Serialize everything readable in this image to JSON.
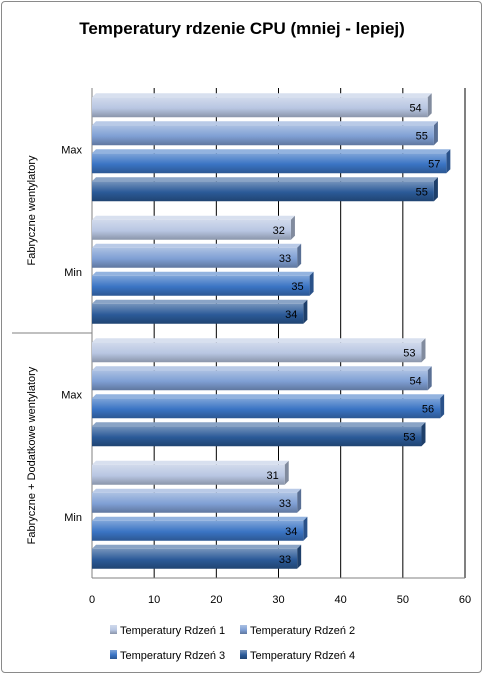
{
  "chart_data": {
    "type": "bar",
    "orientation": "horizontal",
    "title": "Temperatury rdzenie CPU (mniej - lepiej)",
    "xlim": [
      0,
      60
    ],
    "x_ticks": [
      "0",
      "10",
      "20",
      "30",
      "40",
      "50",
      "60"
    ],
    "gridlines": true,
    "legend_position": "bottom",
    "groups": [
      {
        "label": "Fabryczne wentylatory",
        "categories": [
          {
            "label": "Max",
            "values": [
              54,
              55,
              57,
              55
            ]
          },
          {
            "label": "Min",
            "values": [
              32,
              33,
              35,
              34
            ]
          }
        ]
      },
      {
        "label": "Fabryczne + Dodatkowe  wentylatory",
        "categories": [
          {
            "label": "Max",
            "values": [
              53,
              54,
              56,
              53
            ]
          },
          {
            "label": "Min",
            "values": [
              31,
              33,
              34,
              33
            ]
          }
        ]
      }
    ],
    "series": [
      {
        "name": "Temperatury Rdzeń 1",
        "color": "#b8c6e2"
      },
      {
        "name": "Temperatury Rdzeń 2",
        "color": "#7f9fd4"
      },
      {
        "name": "Temperatury Rdzeń 3",
        "color": "#3a74c4"
      },
      {
        "name": "Temperatury Rdzeń 4",
        "color": "#2b5a98"
      }
    ]
  }
}
